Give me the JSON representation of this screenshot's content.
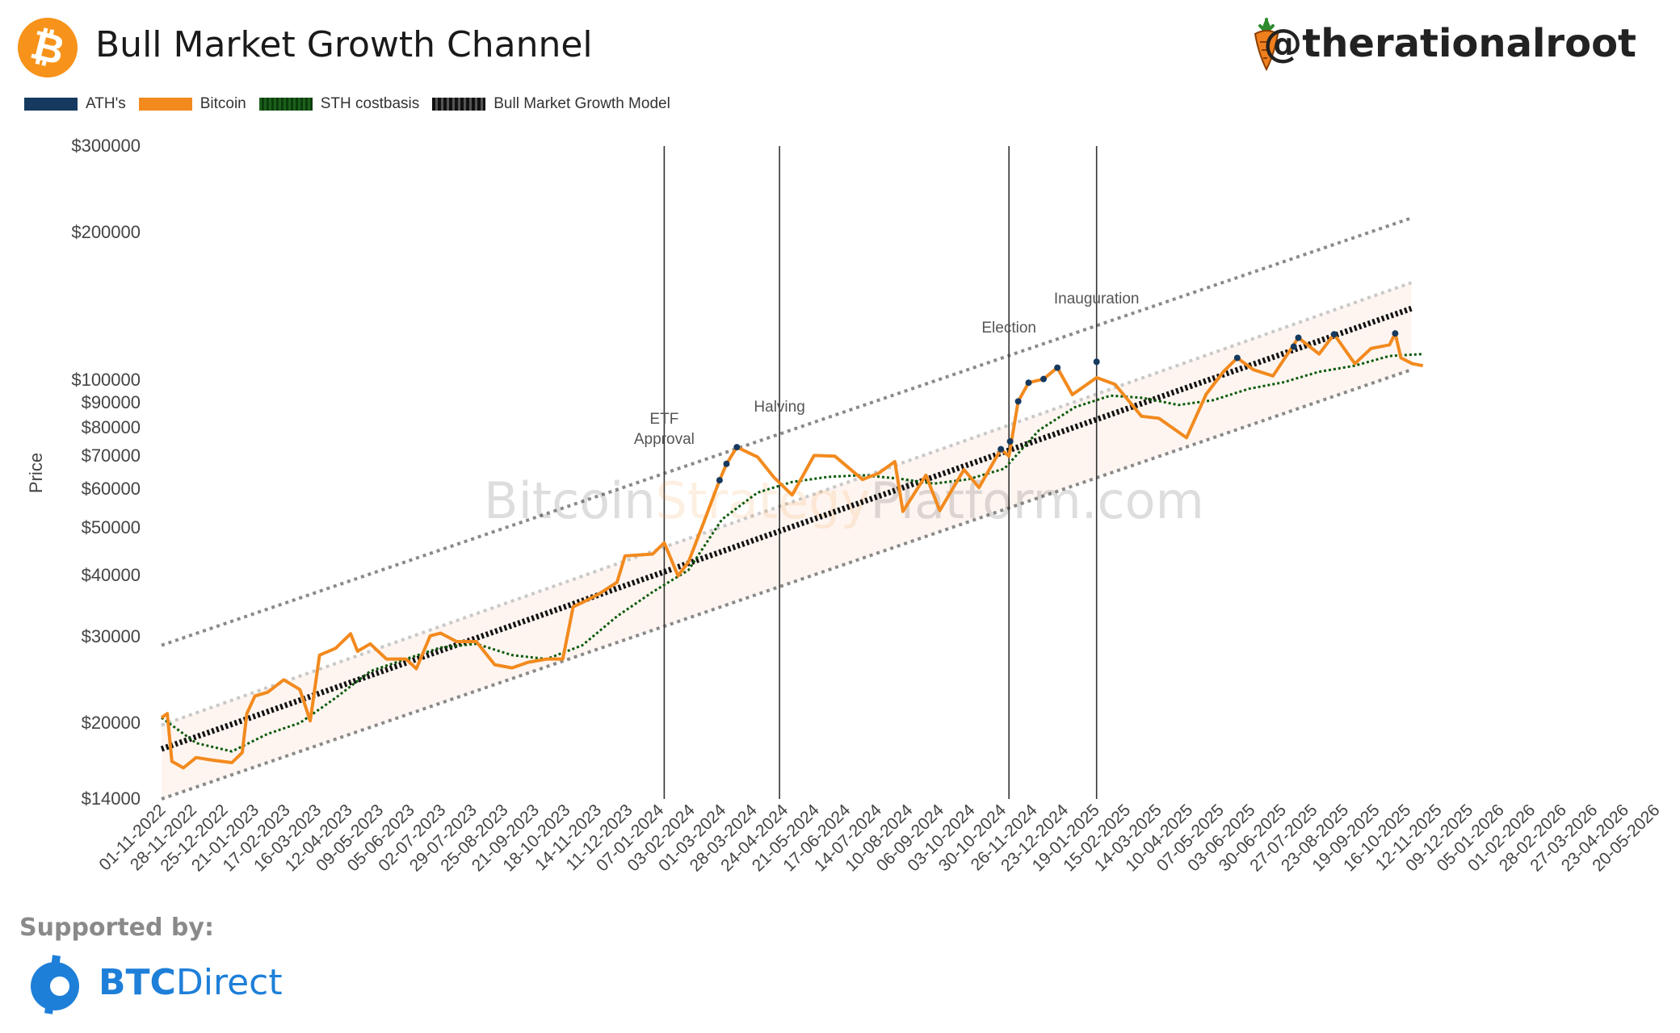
{
  "header": {
    "title": "Bull Market Growth Channel",
    "handle": "@therationalroot",
    "logo_symbol": "₿",
    "logo_color": "#f7931a"
  },
  "legend": [
    {
      "label": "ATH's",
      "color": "#163a5f"
    },
    {
      "label": "Bitcoin",
      "color": "#f28a1e"
    },
    {
      "label": "STH costbasis",
      "color": "#0b5a0b"
    },
    {
      "label": "Bull Market Growth Model",
      "color": "#111111"
    }
  ],
  "watermark": {
    "part1": "Bitcoin",
    "part2": "Strategy",
    "part3": "Platform.com"
  },
  "footer": {
    "supported_label": "Supported by:",
    "sponsor_bold": "BTC",
    "sponsor_rest": "Direct"
  },
  "chart_data": {
    "type": "line",
    "title": "Bull Market Growth Channel",
    "ylabel": "Price",
    "xlabel": "",
    "y_scale": "log",
    "ylim": [
      14000,
      300000
    ],
    "xlim": [
      "01-11-2022",
      "20-05-2026"
    ],
    "y_ticks": [
      {
        "value": 300000,
        "label": "$300000"
      },
      {
        "value": 200000,
        "label": "$200000"
      },
      {
        "value": 100000,
        "label": "$100000"
      },
      {
        "value": 90000,
        "label": "$90000"
      },
      {
        "value": 80000,
        "label": "$80000"
      },
      {
        "value": 70000,
        "label": "$70000"
      },
      {
        "value": 60000,
        "label": "$60000"
      },
      {
        "value": 50000,
        "label": "$50000"
      },
      {
        "value": 40000,
        "label": "$40000"
      },
      {
        "value": 30000,
        "label": "$30000"
      },
      {
        "value": 20000,
        "label": "$20000"
      },
      {
        "value": 14000,
        "label": "$14000"
      }
    ],
    "x_ticks": [
      "01-11-2022",
      "28-11-2022",
      "25-12-2022",
      "21-01-2023",
      "17-02-2023",
      "16-03-2023",
      "12-04-2023",
      "09-05-2023",
      "05-06-2023",
      "02-07-2023",
      "29-07-2023",
      "25-08-2023",
      "21-09-2023",
      "18-10-2023",
      "14-11-2023",
      "11-12-2023",
      "07-01-2024",
      "03-02-2024",
      "01-03-2024",
      "28-03-2024",
      "24-04-2024",
      "21-05-2024",
      "17-06-2024",
      "14-07-2024",
      "10-08-2024",
      "06-09-2024",
      "03-10-2024",
      "30-10-2024",
      "26-11-2024",
      "23-12-2024",
      "19-01-2025",
      "15-02-2025",
      "14-03-2025",
      "10-04-2025",
      "07-05-2025",
      "03-06-2025",
      "30-06-2025",
      "27-07-2025",
      "23-08-2025",
      "19-09-2025",
      "16-10-2025",
      "12-11-2025",
      "09-12-2025",
      "05-01-2026",
      "01-02-2026",
      "28-02-2026",
      "27-03-2026",
      "23-04-2026",
      "20-05-2026"
    ],
    "events": [
      {
        "date": "11-01-2024",
        "label_lines": [
          "ETF",
          "Approval"
        ]
      },
      {
        "date": "20-04-2024",
        "label_lines": [
          "Halving"
        ]
      },
      {
        "date": "05-11-2024",
        "label_lines": [
          "Election"
        ]
      },
      {
        "date": "20-01-2025",
        "label_lines": [
          "Inauguration"
        ]
      }
    ],
    "series": [
      {
        "name": "Bitcoin",
        "color": "#f28a1e",
        "x": [
          "01-11-2022",
          "06-11-2022",
          "10-11-2022",
          "20-11-2022",
          "01-12-2022",
          "15-12-2022",
          "01-01-2023",
          "10-01-2023",
          "14-01-2023",
          "21-01-2023",
          "01-02-2023",
          "15-02-2023",
          "01-03-2023",
          "10-03-2023",
          "18-03-2023",
          "01-04-2023",
          "14-04-2023",
          "20-04-2023",
          "01-05-2023",
          "15-05-2023",
          "01-06-2023",
          "10-06-2023",
          "22-06-2023",
          "01-07-2023",
          "15-07-2023",
          "01-08-2023",
          "17-08-2023",
          "01-09-2023",
          "15-09-2023",
          "01-10-2023",
          "15-10-2023",
          "24-10-2023",
          "01-11-2023",
          "15-11-2023",
          "01-12-2023",
          "08-12-2023",
          "01-01-2024",
          "11-01-2024",
          "23-01-2024",
          "01-02-2024",
          "15-02-2024",
          "28-02-2024",
          "05-03-2024",
          "14-03-2024",
          "01-04-2024",
          "15-04-2024",
          "01-05-2024",
          "20-05-2024",
          "07-06-2024",
          "01-07-2024",
          "15-07-2024",
          "29-07-2024",
          "05-08-2024",
          "25-08-2024",
          "06-09-2024",
          "27-09-2024",
          "10-10-2024",
          "29-10-2024",
          "05-11-2024",
          "13-11-2024",
          "22-11-2024",
          "05-12-2024",
          "17-12-2024",
          "30-12-2024",
          "20-01-2025",
          "05-02-2025",
          "28-02-2025",
          "15-03-2025",
          "08-04-2025",
          "25-04-2025",
          "10-05-2025",
          "22-05-2025",
          "05-06-2025",
          "22-06-2025",
          "14-07-2025",
          "01-08-2025",
          "14-08-2025",
          "01-09-2025",
          "15-09-2025",
          "01-10-2025",
          "06-10-2025",
          "11-10-2025",
          "21-10-2025",
          "30-10-2025"
        ],
        "y": [
          20500,
          20900,
          16700,
          16200,
          17000,
          16800,
          16600,
          17400,
          20900,
          22700,
          23100,
          24500,
          23400,
          20200,
          27500,
          28400,
          30400,
          28000,
          29000,
          27000,
          27000,
          25800,
          30100,
          30500,
          29300,
          29300,
          26300,
          25900,
          26600,
          27000,
          27000,
          34500,
          35200,
          36600,
          38700,
          43800,
          44200,
          46600,
          39900,
          42600,
          51800,
          62500,
          67500,
          73000,
          69700,
          63400,
          58300,
          70200,
          70000,
          62700,
          64600,
          68200,
          54000,
          64000,
          54200,
          65700,
          60400,
          72300,
          70000,
          90500,
          98800,
          100500,
          106000,
          93400,
          101200,
          98000,
          84400,
          83600,
          76300,
          93600,
          104000,
          111000,
          105000,
          102000,
          122000,
          113000,
          124000,
          108000,
          116000,
          118000,
          124500,
          111000,
          108000,
          107000
        ]
      },
      {
        "name": "STH costbasis",
        "color": "#0b5a0b",
        "x": [
          "01-11-2022",
          "01-12-2022",
          "01-01-2023",
          "01-02-2023",
          "01-03-2023",
          "01-04-2023",
          "01-05-2023",
          "01-06-2023",
          "01-07-2023",
          "01-08-2023",
          "01-09-2023",
          "01-10-2023",
          "01-11-2023",
          "01-12-2023",
          "01-01-2024",
          "01-02-2024",
          "01-03-2024",
          "01-04-2024",
          "01-05-2024",
          "01-06-2024",
          "01-07-2024",
          "01-08-2024",
          "01-09-2024",
          "01-10-2024",
          "01-11-2024",
          "01-12-2024",
          "01-01-2025",
          "01-02-2025",
          "01-03-2025",
          "01-04-2025",
          "01-05-2025",
          "01-06-2025",
          "01-07-2025",
          "01-08-2025",
          "01-09-2025",
          "01-10-2025",
          "30-10-2025"
        ],
        "y": [
          20500,
          18200,
          17500,
          19000,
          20000,
          22500,
          25500,
          27000,
          28500,
          29000,
          27500,
          27000,
          28800,
          33000,
          37000,
          41000,
          52000,
          59000,
          62000,
          63500,
          64000,
          63000,
          61500,
          62800,
          66000,
          79000,
          88000,
          93000,
          92000,
          89000,
          91000,
          96000,
          99000,
          104000,
          107000,
          112000,
          113000
        ]
      },
      {
        "name": "Bull Market Growth Model",
        "color": "#111111",
        "x": [
          "01-11-2022",
          "20-10-2025"
        ],
        "y": [
          17700,
          140000
        ]
      },
      {
        "name": "ATH's",
        "color": "#163a5f",
        "x": [
          "28-02-2024",
          "05-03-2024",
          "14-03-2024",
          "29-10-2024",
          "06-11-2024",
          "13-11-2024",
          "22-11-2024",
          "05-12-2024",
          "17-12-2024",
          "20-01-2025",
          "22-05-2025",
          "10-07-2025",
          "14-07-2025",
          "14-08-2025",
          "06-10-2025"
        ],
        "y": [
          62500,
          67500,
          73000,
          72300,
          75000,
          90500,
          98800,
          100500,
          106000,
          109000,
          111000,
          117000,
          122000,
          124000,
          124500
        ]
      }
    ],
    "channel_lines": [
      {
        "x": [
          "01-11-2022",
          "20-10-2025"
        ],
        "y": [
          28800,
          214000
        ],
        "style": "upper"
      },
      {
        "x": [
          "01-11-2022",
          "20-10-2025"
        ],
        "y": [
          19800,
          158000
        ],
        "style": "mid"
      },
      {
        "x": [
          "01-11-2022",
          "20-10-2025"
        ],
        "y": [
          14000,
          105000
        ],
        "style": "lower"
      }
    ],
    "grid": false,
    "legend_position": "top-left"
  }
}
